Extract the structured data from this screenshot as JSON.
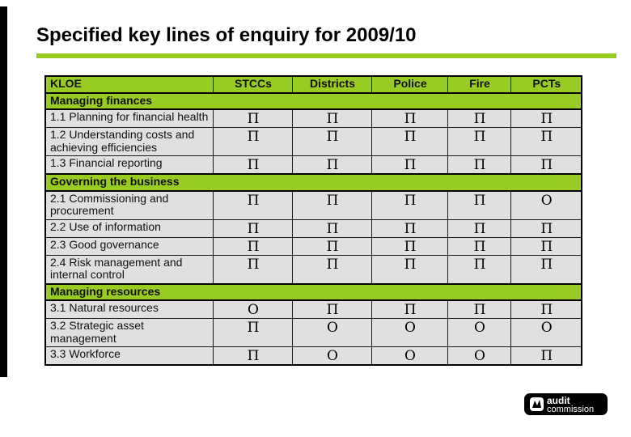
{
  "slide": {
    "title": "Specified key lines of enquiry for 2009/10"
  },
  "colors": {
    "accent_green": "#99CC22",
    "cell_grey": "#E0E0E0",
    "bar_black": "#000000"
  },
  "table": {
    "columns": [
      "KLOE",
      "STCCs",
      "Districts",
      "Police",
      "Fire",
      "PCTs"
    ],
    "sections": [
      {
        "header": "Managing finances",
        "rows": [
          {
            "label": "1.1 Planning for financial health",
            "cells": [
              "Π",
              "Π",
              "Π",
              "Π",
              "Π"
            ]
          },
          {
            "label": "1.2 Understanding costs and achieving efficiencies",
            "cells": [
              "Π",
              "Π",
              "Π",
              "Π",
              "Π"
            ]
          },
          {
            "label": "1.3 Financial reporting",
            "cells": [
              "Π",
              "Π",
              "Π",
              "Π",
              "Π"
            ]
          }
        ]
      },
      {
        "header": "Governing the business",
        "rows": [
          {
            "label": "2.1 Commissioning and procurement",
            "cells": [
              "Π",
              "Π",
              "Π",
              "Π",
              "O"
            ]
          },
          {
            "label": "2.2 Use of information",
            "cells": [
              "Π",
              "Π",
              "Π",
              "Π",
              "Π"
            ]
          },
          {
            "label": "2.3 Good governance",
            "cells": [
              "Π",
              "Π",
              "Π",
              "Π",
              "Π"
            ]
          },
          {
            "label": "2.4 Risk management and internal control",
            "cells": [
              "Π",
              "Π",
              "Π",
              "Π",
              "Π"
            ]
          }
        ]
      },
      {
        "header": "Managing resources",
        "rows": [
          {
            "label": "3.1 Natural resources",
            "cells": [
              "O",
              "Π",
              "Π",
              "Π",
              "Π"
            ]
          },
          {
            "label": "3.2 Strategic asset management",
            "cells": [
              "Π",
              "O",
              "O",
              "O",
              "O"
            ]
          },
          {
            "label": "3.3 Workforce",
            "cells": [
              "Π",
              "O",
              "O",
              "O",
              "Π"
            ]
          }
        ]
      }
    ]
  },
  "logo": {
    "line1": "audit",
    "line2": "commission"
  }
}
